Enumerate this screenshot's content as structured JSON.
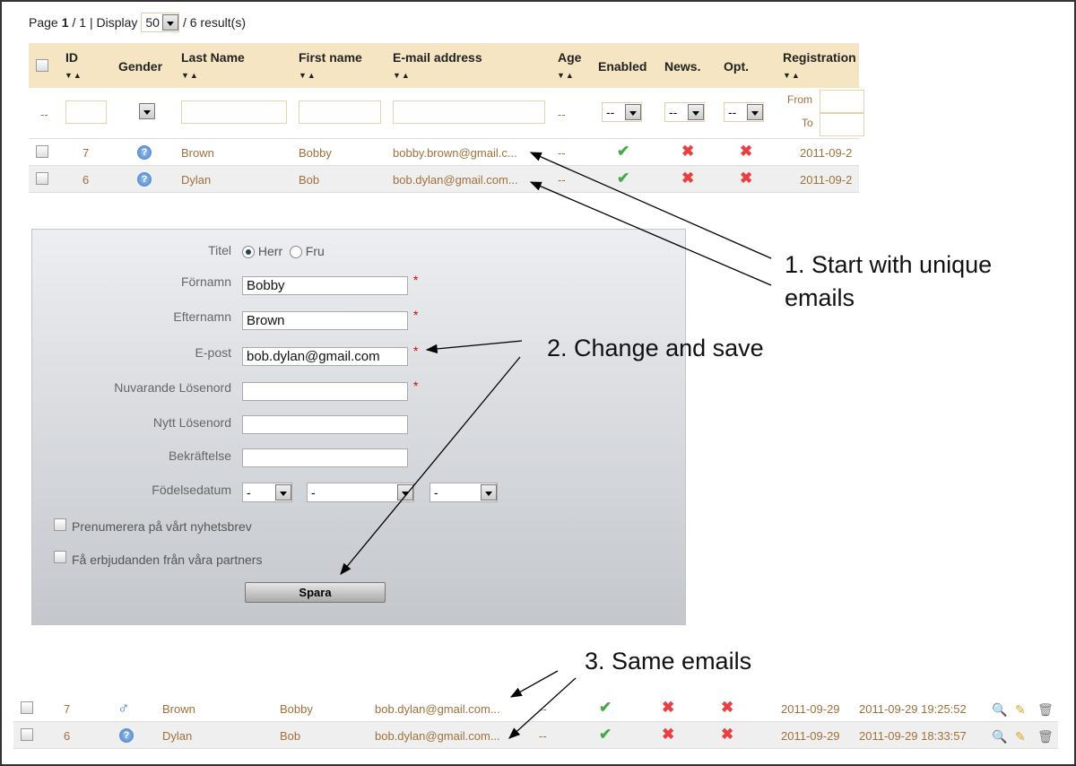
{
  "pager": {
    "page_prefix": "Page",
    "page_current": "1",
    "page_sep": "/ 1 | Display",
    "display_value": "50",
    "results": "/ 6 result(s)"
  },
  "table": {
    "headers": {
      "id": "ID",
      "gender": "Gender",
      "last_name": "Last Name",
      "first_name": "First name",
      "email": "E-mail address",
      "age": "Age",
      "enabled": "Enabled",
      "news": "News.",
      "opt": "Opt.",
      "registration": "Registration"
    },
    "sort_glyph": "▼▲",
    "filter": {
      "dash": "--",
      "age": "--",
      "enabled": "--",
      "news": "--",
      "opt": "--",
      "from": "From",
      "to": "To"
    },
    "rows": [
      {
        "id": "7",
        "gender": "unknown",
        "last": "Brown",
        "first": "Bobby",
        "email": "bobby.brown@gmail.c...",
        "age": "--",
        "enabled": true,
        "news": false,
        "opt": false,
        "registration": "2011-09-2"
      },
      {
        "id": "6",
        "gender": "unknown",
        "last": "Dylan",
        "first": "Bob",
        "email": "bob.dylan@gmail.com...",
        "age": "--",
        "enabled": true,
        "news": false,
        "opt": false,
        "registration": "2011-09-2"
      }
    ]
  },
  "form": {
    "titel_label": "Titel",
    "herr": "Herr",
    "fru": "Fru",
    "fornamn_label": "Förnamn",
    "fornamn_value": "Bobby",
    "efternamn_label": "Efternamn",
    "efternamn_value": "Brown",
    "epost_label": "E-post",
    "epost_value": "bob.dylan@gmail.com",
    "nuv_label": "Nuvarande Lösenord",
    "nytt_label": "Nytt Lösenord",
    "bekr_label": "Bekräftelse",
    "fodel_label": "Födelsedatum",
    "dash": "-",
    "newsletter": "Prenumerera på vårt nyhetsbrev",
    "partners": "Få erbjudanden från våra partners",
    "save": "Spara",
    "required": "*"
  },
  "notes": {
    "n1a": "1. Start with unique",
    "n1b": "emails",
    "n2": "2. Change and save",
    "n3": "3. Same emails"
  },
  "bottom_rows": [
    {
      "id": "7",
      "gender": "male",
      "last": "Brown",
      "first": "Bobby",
      "email": "bob.dylan@gmail.com...",
      "age": "--",
      "enabled": true,
      "news": false,
      "opt": false,
      "date": "2011-09-29",
      "datetime": "2011-09-29 19:25:52"
    },
    {
      "id": "6",
      "gender": "unknown",
      "last": "Dylan",
      "first": "Bob",
      "email": "bob.dylan@gmail.com...",
      "age": "--",
      "enabled": true,
      "news": false,
      "opt": false,
      "date": "2011-09-29",
      "datetime": "2011-09-29 18:33:57"
    }
  ],
  "glyphs": {
    "check": "✔",
    "cross": "✖",
    "question": "?",
    "male": "♂",
    "view": "🔍",
    "edit": "✎",
    "delete": "🗑"
  }
}
